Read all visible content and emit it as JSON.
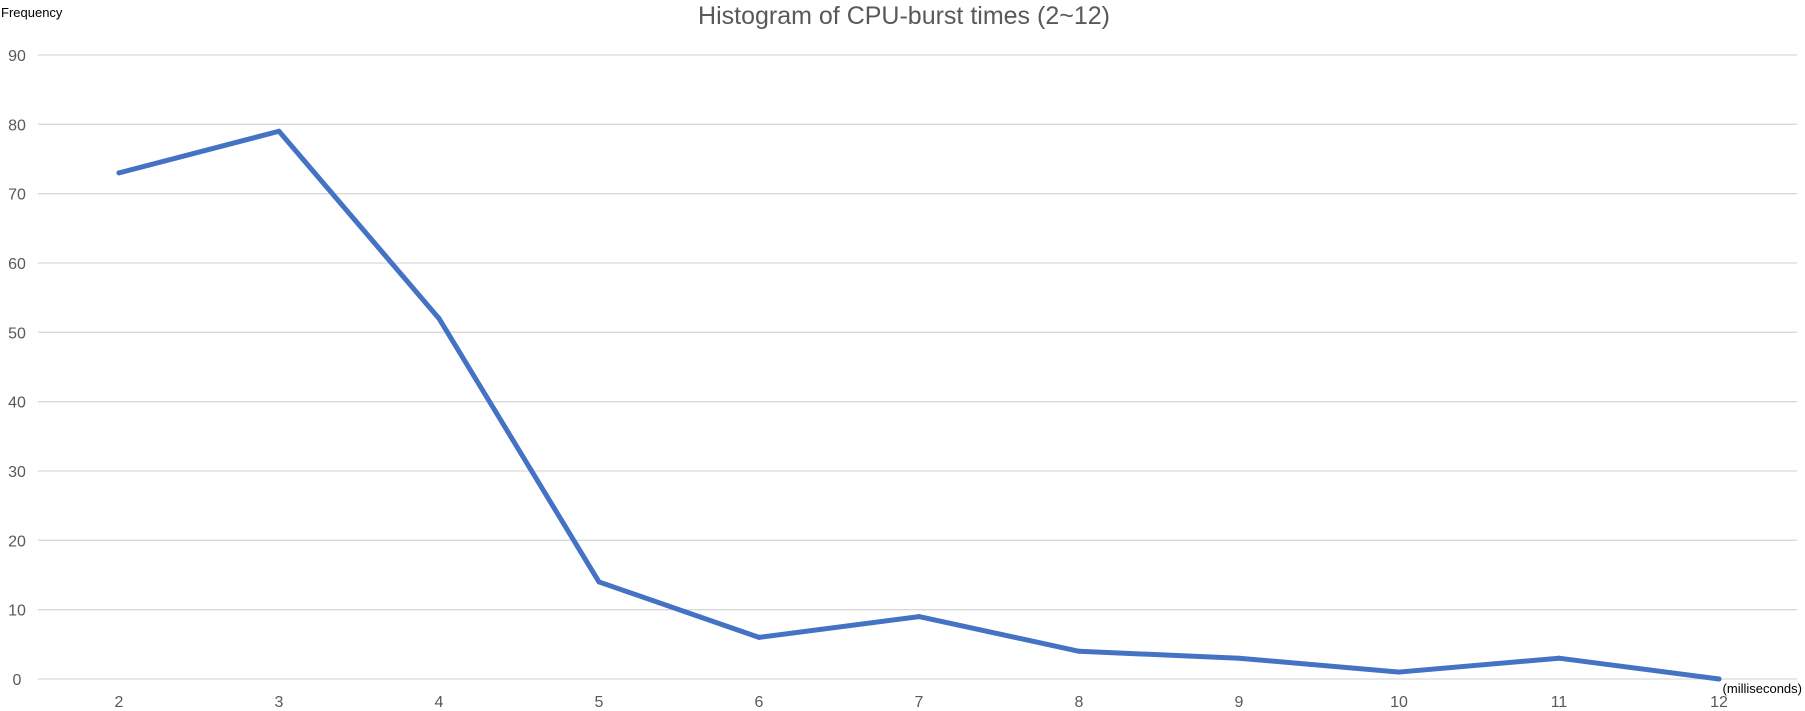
{
  "chart_data": {
    "type": "line",
    "title": "Histogram of CPU-burst times (2~12)",
    "ylabel": "Frequency",
    "xlabel": "(milliseconds)",
    "categories": [
      "2",
      "3",
      "4",
      "5",
      "6",
      "7",
      "8",
      "9",
      "10",
      "11",
      "12"
    ],
    "series": [
      {
        "color": "#4472c4",
        "values": [
          73,
          79,
          52,
          14,
          6,
          9,
          4,
          3,
          1,
          3,
          0
        ]
      }
    ],
    "ylim": [
      0,
      90
    ],
    "yticks": [
      "0",
      "10",
      "20",
      "30",
      "40",
      "50",
      "60",
      "70",
      "80",
      "90"
    ],
    "grid": true,
    "legend": "none"
  }
}
